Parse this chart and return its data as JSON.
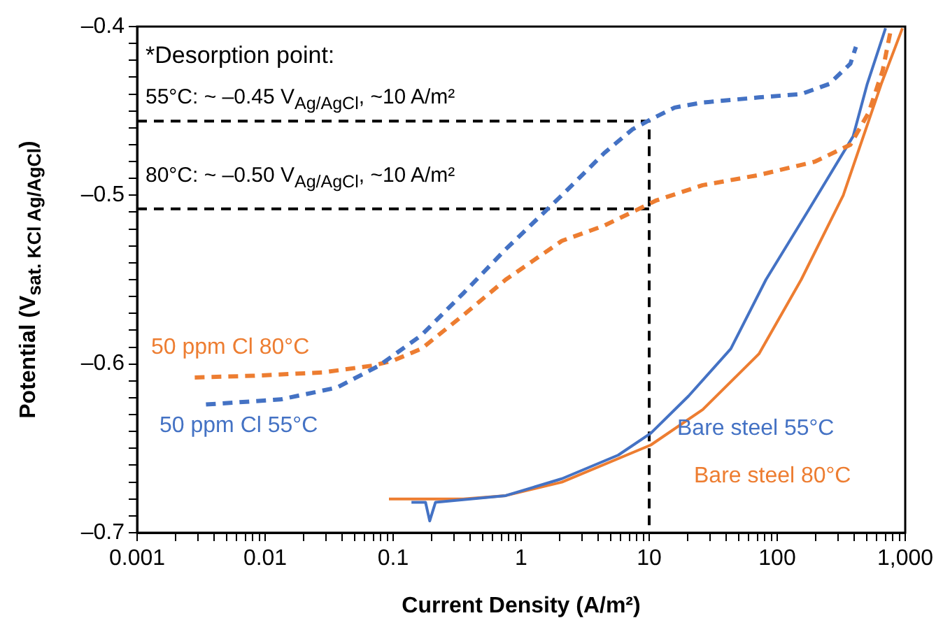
{
  "chart_data": {
    "type": "line",
    "xlabel": "Current Density (A/m²)",
    "ylabel": "Potential (V$_{sat. KCl Ag/AgCl}$)",
    "annotations": [
      "*Desorption point:",
      "55°C: ~ –0.45 V$_{Ag/AgCl}$, ~10 A/m²",
      "80°C: ~ –0.50 V$_{Ag/AgCl}$, ~10 A/m²"
    ],
    "log": "x",
    "grid": false,
    "legend": false,
    "marker": "none",
    "xlim": [
      0.001,
      1000
    ],
    "ylim": [
      -0.7,
      -0.4
    ],
    "xticks": [
      0.001,
      {
        "value": 0.002,
        "label": null
      },
      {
        "value": 0.003,
        "label": null
      },
      {
        "value": 0.004,
        "label": null
      },
      {
        "value": 0.005,
        "label": null
      },
      {
        "value": 0.006,
        "label": null
      },
      {
        "value": 0.007,
        "label": null
      },
      {
        "value": 0.008,
        "label": null
      },
      {
        "value": 0.009,
        "label": null
      },
      0.01,
      {
        "value": 0.02,
        "label": null
      },
      {
        "value": 0.03,
        "label": null
      },
      {
        "value": 0.04,
        "label": null
      },
      {
        "value": 0.05,
        "label": null
      },
      {
        "value": 0.06,
        "label": null
      },
      {
        "value": 0.07,
        "label": null
      },
      {
        "value": 0.08,
        "label": null
      },
      {
        "value": 0.09,
        "label": null
      },
      0.1,
      {
        "value": 0.2,
        "label": null
      },
      {
        "value": 0.3,
        "label": null
      },
      {
        "value": 0.4,
        "label": null
      },
      {
        "value": 0.5,
        "label": null
      },
      {
        "value": 0.6,
        "label": null
      },
      {
        "value": 0.7,
        "label": null
      },
      {
        "value": 0.8,
        "label": null
      },
      {
        "value": 0.9,
        "label": null
      },
      1,
      {
        "value": 2,
        "label": null
      },
      {
        "value": 3,
        "label": null
      },
      {
        "value": 4,
        "label": null
      },
      {
        "value": 5,
        "label": null
      },
      {
        "value": 6,
        "label": null
      },
      {
        "value": 7,
        "label": null
      },
      {
        "value": 8,
        "label": null
      },
      {
        "value": 9,
        "label": null
      },
      10,
      {
        "value": 20,
        "label": null
      },
      {
        "value": 30,
        "label": null
      },
      {
        "value": 40,
        "label": null
      },
      {
        "value": 50,
        "label": null
      },
      {
        "value": 60,
        "label": null
      },
      {
        "value": 70,
        "label": null
      },
      {
        "value": 80,
        "label": null
      },
      {
        "value": 90,
        "label": null
      },
      100,
      {
        "value": 200,
        "label": null
      },
      {
        "value": 300,
        "label": null
      },
      {
        "value": 400,
        "label": null
      },
      {
        "value": 500,
        "label": null
      },
      {
        "value": 600,
        "label": null
      },
      {
        "value": 700,
        "label": null
      },
      {
        "value": 800,
        "label": null
      },
      {
        "value": 900,
        "label": null
      },
      {
        "value": 1000,
        "label": "1,000"
      }
    ],
    "yticks": [
      {
        "value": -0.7,
        "label": "–0.7"
      },
      {
        "value": -0.69,
        "label": null
      },
      {
        "value": -0.68,
        "label": null
      },
      {
        "value": -0.67,
        "label": null
      },
      {
        "value": -0.66,
        "label": null
      },
      {
        "value": -0.65,
        "label": null
      },
      {
        "value": -0.64,
        "label": null
      },
      {
        "value": -0.63,
        "label": null
      },
      {
        "value": -0.62,
        "label": null
      },
      {
        "value": -0.61,
        "label": null
      },
      {
        "value": -0.6,
        "label": "–0.6"
      },
      {
        "value": -0.59,
        "label": null
      },
      {
        "value": -0.58,
        "label": null
      },
      {
        "value": -0.57,
        "label": null
      },
      {
        "value": -0.56,
        "label": null
      },
      {
        "value": -0.55,
        "label": null
      },
      {
        "value": -0.54,
        "label": null
      },
      {
        "value": -0.53,
        "label": null
      },
      {
        "value": -0.52,
        "label": null
      },
      {
        "value": -0.51,
        "label": null
      },
      {
        "value": -0.5,
        "label": "–0.5"
      },
      {
        "value": -0.49,
        "label": null
      },
      {
        "value": -0.48,
        "label": null
      },
      {
        "value": -0.47,
        "label": null
      },
      {
        "value": -0.46,
        "label": null
      },
      {
        "value": -0.45,
        "label": null
      },
      {
        "value": -0.44,
        "label": null
      },
      {
        "value": -0.43,
        "label": null
      },
      {
        "value": -0.42,
        "label": null
      },
      {
        "value": -0.41,
        "label": null
      },
      {
        "value": -0.4,
        "label": "–0.4"
      }
    ],
    "series": [
      {
        "name": "50 ppm Cl 55°C",
        "color": "#4472c4",
        "line_style": "dashed",
        "x": [
          0.00345,
          0.0132,
          0.0363,
          0.0776,
          0.166,
          0.354,
          0.757,
          2.08,
          4.45,
          7.38,
          10.3,
          15.8,
          26.2,
          72,
          154,
          255,
          373,
          412
        ],
        "values": [
          -0.624,
          -0.621,
          -0.614,
          -0.601,
          -0.583,
          -0.558,
          -0.532,
          -0.5,
          -0.475,
          -0.461,
          -0.455,
          -0.448,
          -0.445,
          -0.442,
          -0.44,
          -0.434,
          -0.422,
          -0.412
        ]
      },
      {
        "name": "50 ppm Cl 80°C",
        "color": "#ed7d31",
        "line_style": "dashed",
        "x": [
          0.00282,
          0.00796,
          0.0282,
          0.0685,
          0.1,
          0.166,
          0.354,
          0.757,
          2.08,
          4.45,
          11.4,
          26.2,
          72,
          198,
          373,
          518,
          667,
          776
        ],
        "values": [
          -0.608,
          -0.607,
          -0.605,
          -0.601,
          -0.598,
          -0.591,
          -0.571,
          -0.55,
          -0.527,
          -0.518,
          -0.503,
          -0.494,
          -0.488,
          -0.48,
          -0.47,
          -0.451,
          -0.426,
          -0.401
        ]
      },
      {
        "name": "Bare steel 55°C",
        "color": "#4472c4",
        "line_style": "solid",
        "x": [
          0.139,
          0.179,
          0.193,
          0.214,
          0.757,
          2.08,
          5.73,
          10.3,
          20.3,
          43.4,
          81.7,
          175,
          392,
          505,
          702
        ],
        "values": [
          -0.682,
          -0.682,
          -0.693,
          -0.682,
          -0.678,
          -0.668,
          -0.654,
          -0.641,
          -0.619,
          -0.591,
          -0.55,
          -0.509,
          -0.465,
          -0.434,
          -0.401
        ]
      },
      {
        "name": "Bare steel 80°C",
        "color": "#ed7d31",
        "line_style": "solid",
        "x": [
          0.0927,
          0.354,
          0.757,
          2.08,
          10.3,
          26.2,
          72,
          154,
          328,
          650,
          951
        ],
        "values": [
          -0.68,
          -0.68,
          -0.678,
          -0.67,
          -0.648,
          -0.627,
          -0.594,
          -0.55,
          -0.5,
          -0.434,
          -0.401
        ]
      },
      {
        "color": "#000000",
        "line_style": "dashed",
        "x": [
          0.001,
          10,
          10
        ],
        "values": [
          -0.456,
          -0.456,
          -0.7
        ]
      },
      {
        "color": "#000000",
        "line_style": "dashed",
        "x": [
          0.001,
          10
        ],
        "values": [
          -0.508,
          -0.508
        ]
      }
    ]
  }
}
